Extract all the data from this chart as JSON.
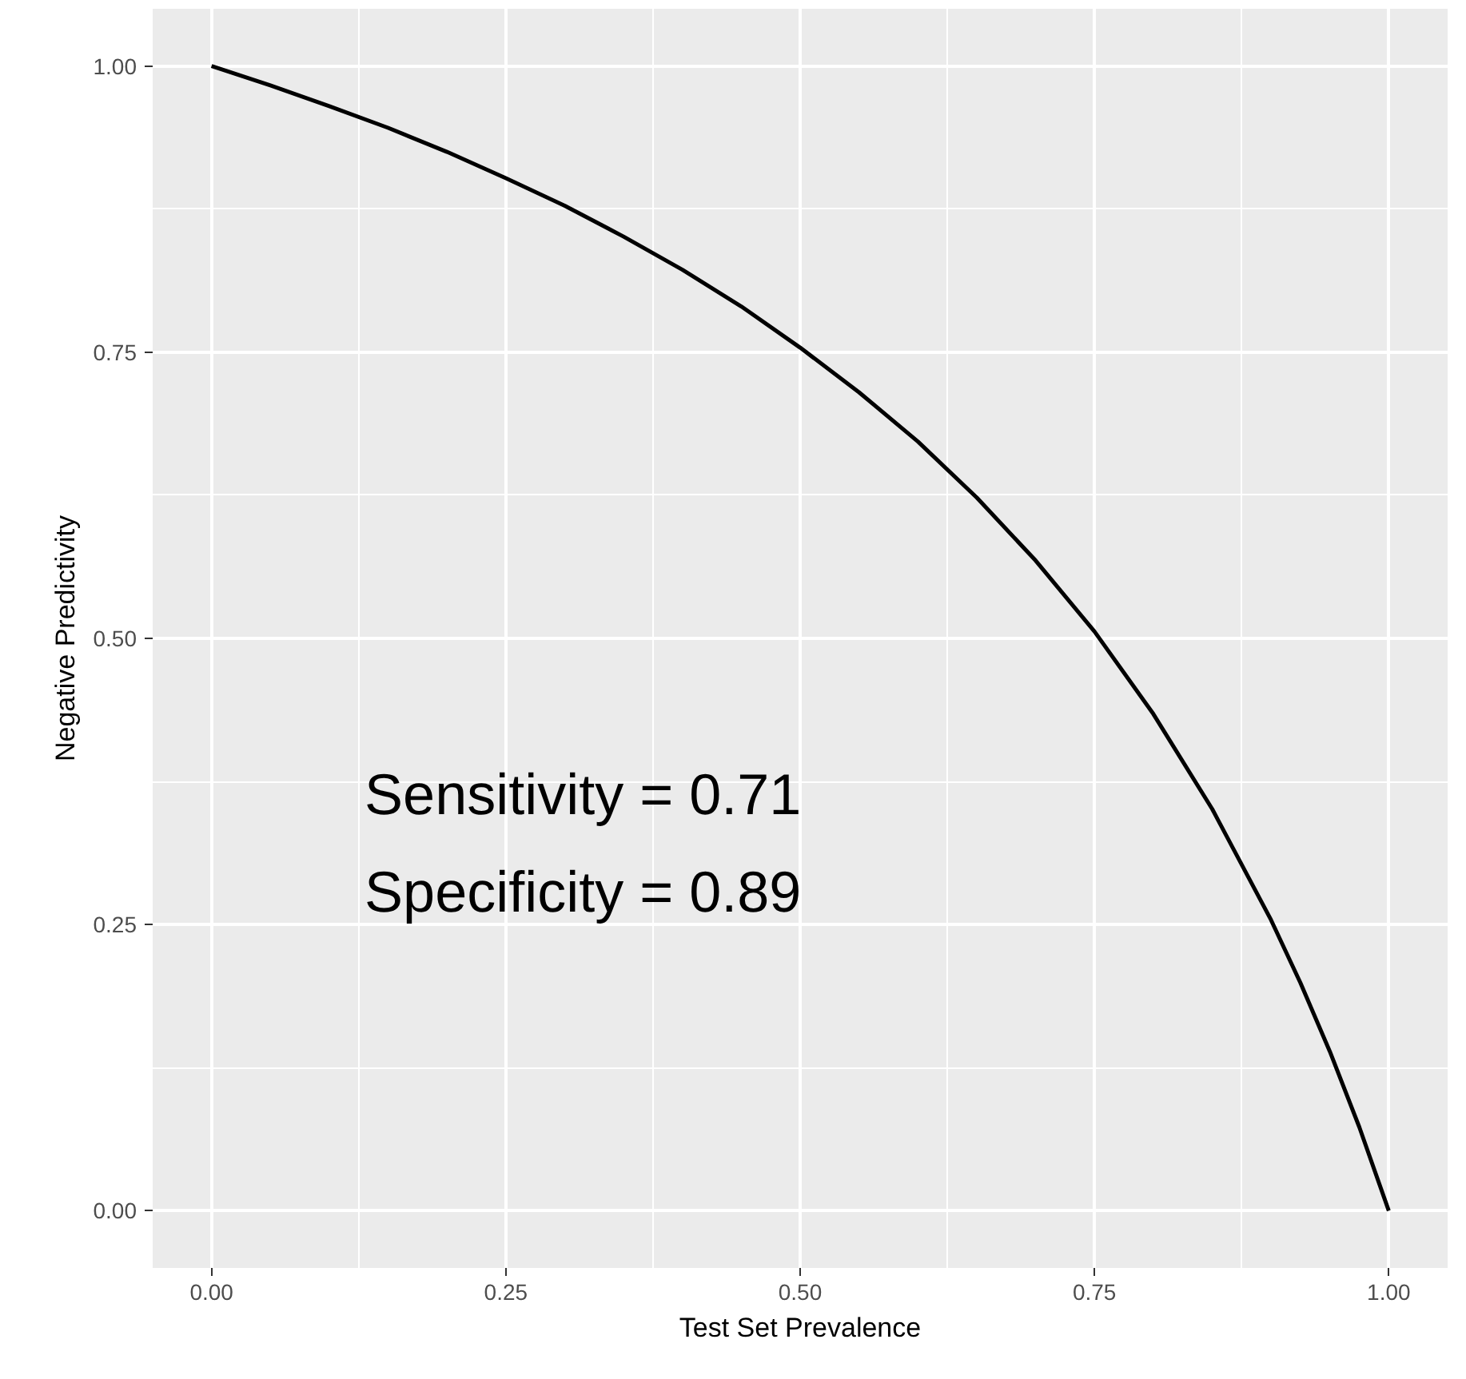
{
  "chart_data": {
    "type": "line",
    "xlabel": "Test Set Prevalence",
    "ylabel": "Negative Predictivity",
    "x": [
      0,
      0.05,
      0.1,
      0.15,
      0.2,
      0.25,
      0.3,
      0.35,
      0.4,
      0.45,
      0.5,
      0.55,
      0.6,
      0.65,
      0.7,
      0.75,
      0.8,
      0.85,
      0.9,
      0.925,
      0.95,
      0.975,
      1
    ],
    "series": [
      {
        "color": "#000000",
        "values": [
          1.0,
          0.983,
          0.965,
          0.946,
          0.925,
          0.902,
          0.878,
          0.851,
          0.822,
          0.79,
          0.754,
          0.715,
          0.672,
          0.623,
          0.568,
          0.506,
          0.434,
          0.351,
          0.254,
          0.199,
          0.139,
          0.073,
          0.0
        ]
      }
    ],
    "xlim": [
      -0.05,
      1.05
    ],
    "ylim": [
      -0.05,
      1.05
    ],
    "xticks": [
      {
        "value": 0,
        "label": "0.00"
      },
      {
        "value": 0.25,
        "label": "0.25"
      },
      {
        "value": 0.5,
        "label": "0.50"
      },
      {
        "value": 0.75,
        "label": "0.75"
      },
      {
        "value": 1,
        "label": "1.00"
      }
    ],
    "yticks": [
      {
        "value": 0,
        "label": "0.00"
      },
      {
        "value": 0.25,
        "label": "0.25"
      },
      {
        "value": 0.5,
        "label": "0.50"
      },
      {
        "value": 0.75,
        "label": "0.75"
      },
      {
        "value": 1,
        "label": "1.00"
      }
    ],
    "grid": true,
    "marker": "none",
    "line_style": "solid",
    "annotations": [
      "Sensitivity = 0.71",
      "Specificity = 0.89"
    ]
  }
}
